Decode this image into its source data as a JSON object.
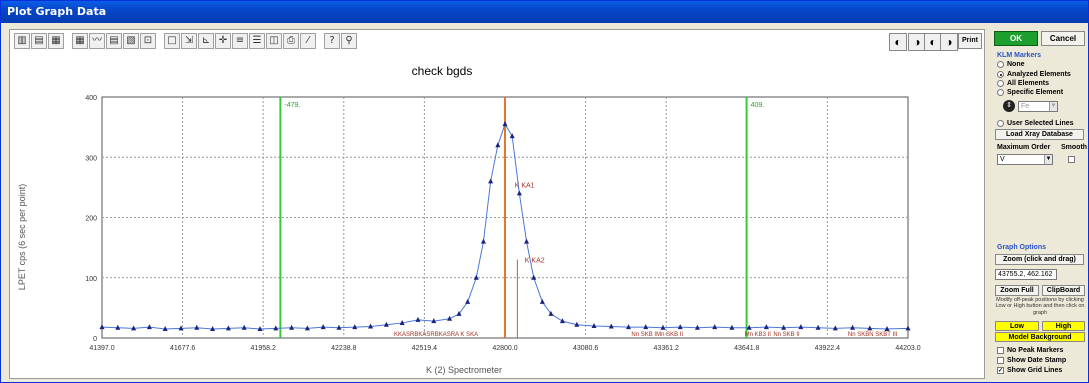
{
  "window": {
    "title": "Plot Graph Data"
  },
  "toolbar": {
    "icons": [
      "copy-icon",
      "paste-icon",
      "bar-chart-icon",
      "grid-icon",
      "line-chart-icon",
      "table-icon",
      "stats-icon",
      "zoom-fit-icon",
      "box-icon",
      "scale-icon",
      "axes-icon",
      "crosshair-icon",
      "legend-icon",
      "list-icon",
      "overlay-icon",
      "export-icon",
      "marker-icon",
      "help-icon",
      "magnify-icon"
    ],
    "print_label": "Print"
  },
  "chart_data": {
    "type": "scatter",
    "title": "check bgds",
    "xlabel": "K  (2) Spectrometer",
    "ylabel": "LPET cps (6 sec per point)",
    "xlim": [
      41397.0,
      44203.0
    ],
    "ylim": [
      0,
      400
    ],
    "xticks": [
      "41397.0",
      "41677.6",
      "41958.2",
      "42238.8",
      "42519.4",
      "42800.0",
      "43080.6",
      "43361.2",
      "43641.8",
      "43922.4",
      "44203.0"
    ],
    "yticks": [
      "0",
      "100",
      "200",
      "300",
      "400"
    ],
    "grid": true,
    "series": [
      {
        "x": [
          41397,
          41452,
          41507,
          41562,
          41617,
          41672,
          41727,
          41782,
          41837,
          41892,
          41947,
          42002,
          42057,
          42112,
          42167,
          42222,
          42277,
          42332,
          42387,
          42442,
          42497,
          42552,
          42607,
          42640,
          42670,
          42700,
          42725,
          42750,
          42775,
          42800,
          42825,
          42850,
          42875,
          42900,
          42930,
          42960,
          43000,
          43050,
          43110,
          43170,
          43230,
          43290,
          43350,
          43410,
          43470,
          43530,
          43590,
          43650,
          43710,
          43770,
          43830,
          43890,
          43950,
          44010,
          44070,
          44130,
          44203
        ],
        "y": [
          18,
          17,
          16,
          18,
          15,
          16,
          17,
          15,
          16,
          17,
          15,
          16,
          17,
          16,
          18,
          17,
          18,
          19,
          22,
          25,
          30,
          28,
          32,
          40,
          60,
          100,
          160,
          260,
          320,
          355,
          335,
          240,
          160,
          100,
          60,
          40,
          28,
          22,
          20,
          19,
          18,
          18,
          17,
          18,
          17,
          18,
          17,
          17,
          18,
          17,
          18,
          17,
          16,
          17,
          16,
          15,
          16
        ]
      }
    ],
    "marker_lines": [
      {
        "x": 42018,
        "label": "-479.",
        "color": "#33cc33"
      },
      {
        "x": 43641,
        "label": "409.",
        "color": "#33cc33"
      },
      {
        "x": 42800,
        "label": "",
        "color": "#e8742e"
      },
      {
        "x": 42843,
        "label": "",
        "color": "#cc5533"
      }
    ],
    "peak_labels": [
      {
        "x": 42820,
        "y": 250,
        "text": "K KA1"
      },
      {
        "x": 42855,
        "y": 125,
        "text": "K KA2"
      }
    ],
    "baseline_labels": [
      {
        "x": 42560,
        "text": "KKASRBKASRBKASRA  K SKA"
      },
      {
        "x": 43330,
        "text": "Nn SKB IMn SKB II"
      },
      {
        "x": 43680,
        "text": "Mn KB3 II"
      },
      {
        "x": 43780,
        "text": "Nn SKB II"
      },
      {
        "x": 44080,
        "text": "Nn SKBN SKBT III"
      }
    ]
  },
  "side": {
    "ok_label": "OK",
    "cancel_label": "Cancel",
    "klm_title": "KLM Markers",
    "radio_none": "None",
    "radio_analyzed": "Analyzed Elements",
    "radio_all": "All Elements",
    "radio_specific": "Specific Element",
    "element_value": "Fe",
    "user_lines": "User Selected Lines",
    "load_db": "Load Xray Database",
    "max_order_label": "Maximum Order",
    "smooth_label": "Smooth",
    "max_order_value": "V",
    "graph_options_title": "Graph Options",
    "zoom_drag": "Zoom (click and drag)",
    "coords": "43755.2, 462.162",
    "zoom_full": "Zoom Full",
    "clipboard": "ClipBoard",
    "help_text": "Modify off-peak positions by clicking Low or High button and then click on graph",
    "low": "Low",
    "high": "High",
    "model_bg": "Model Background",
    "no_peak_markers": "No Peak Markers",
    "show_date_stamp": "Show Date Stamp",
    "show_grid_lines": "Show Grid Lines"
  }
}
